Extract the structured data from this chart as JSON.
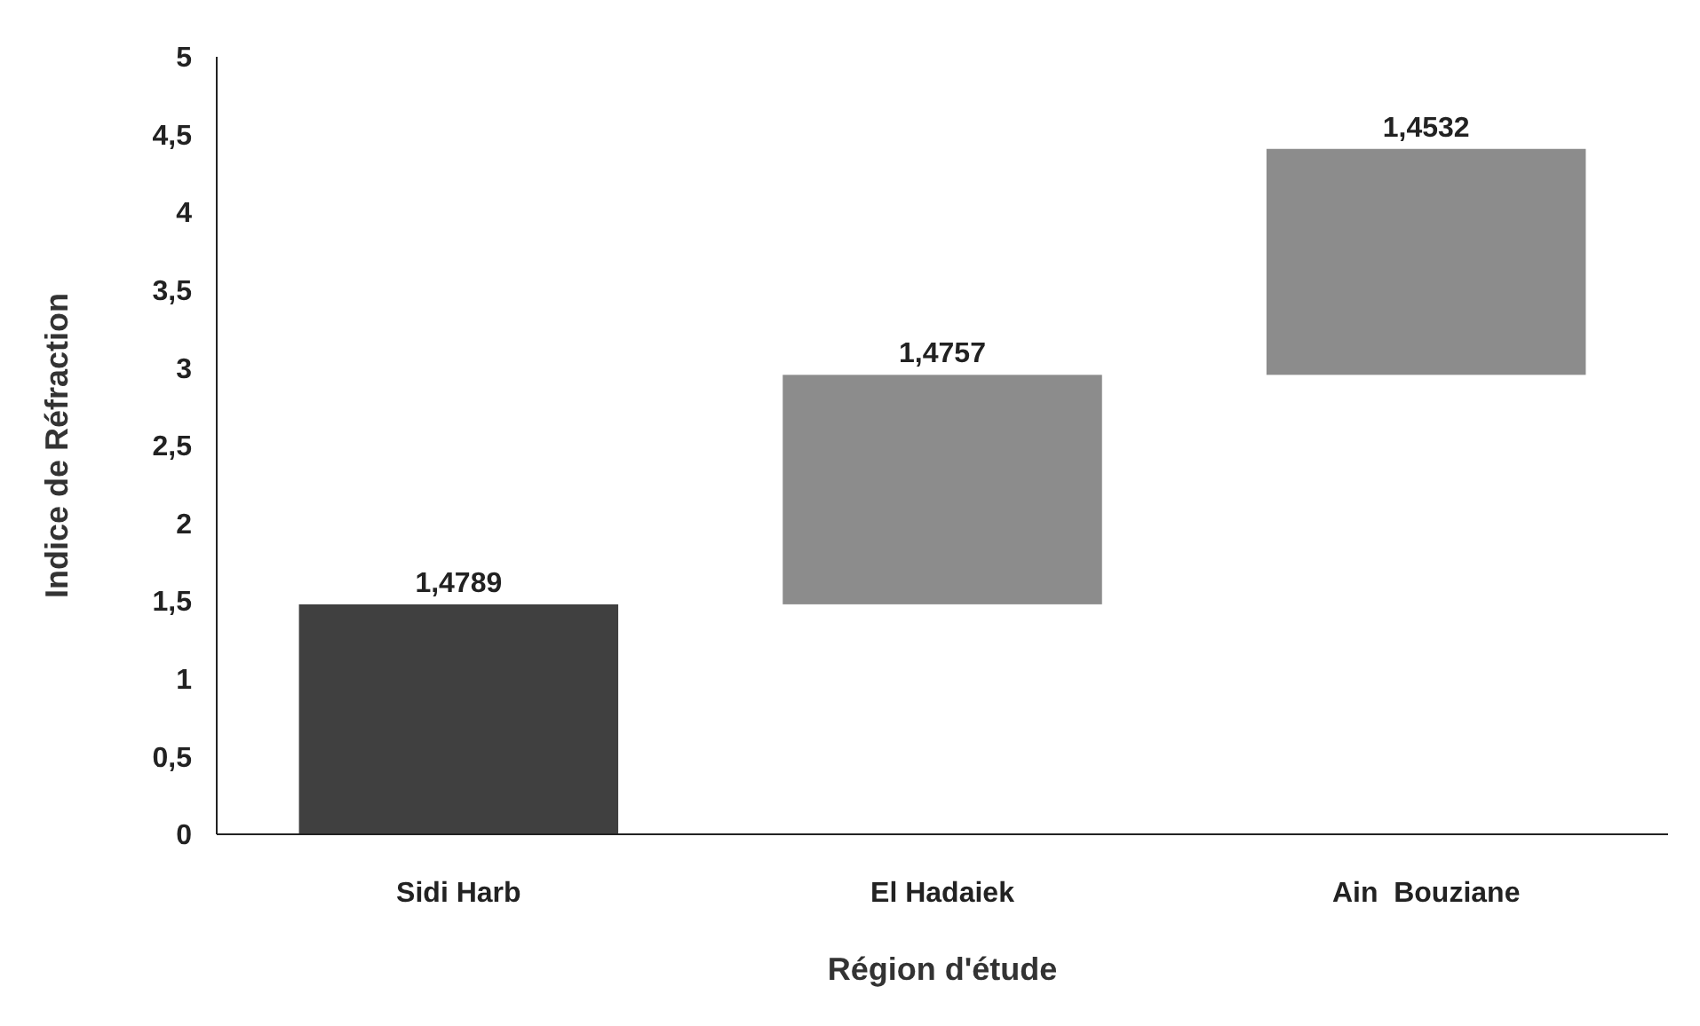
{
  "chart_data": {
    "type": "bar",
    "xlabel": "Région d'étude",
    "ylabel": "Indice de Réfraction",
    "categories": [
      "Sidi Harb",
      "El Hadaiek",
      "Ain  Bouziane"
    ],
    "values": [
      1.4789,
      1.4757,
      1.4532
    ],
    "base": [
      0,
      1.4789,
      2.9546
    ],
    "colors": [
      "#404040",
      "#8c8c8c",
      "#8c8c8c"
    ],
    "value_labels": [
      "1,4789",
      "1,4757",
      "1,4532"
    ],
    "ylim": [
      0,
      5
    ],
    "yticks": [
      0,
      {
        "value": 0.5,
        "label": "0,5"
      },
      1,
      {
        "value": 1.5,
        "label": "1,5"
      },
      2,
      {
        "value": 2.5,
        "label": "2,5"
      },
      3,
      {
        "value": 3.5,
        "label": "3,5"
      },
      4,
      {
        "value": 4.5,
        "label": "4,5"
      },
      5
    ],
    "grid": false
  }
}
